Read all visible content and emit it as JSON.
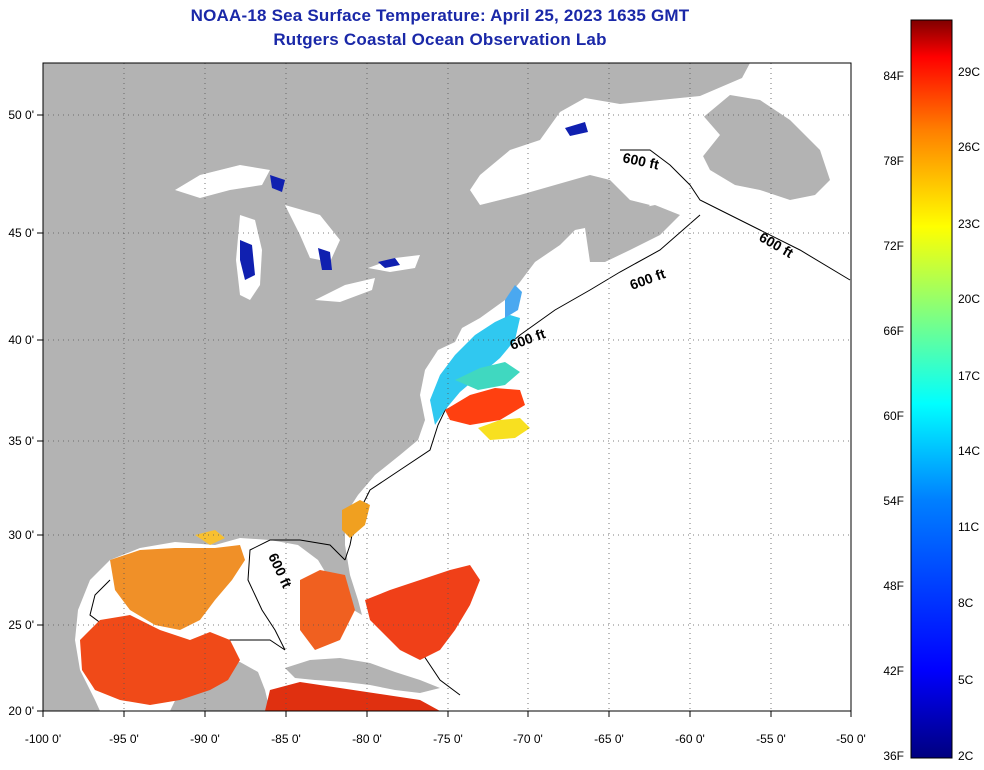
{
  "title_line1": "NOAA-18 Sea Surface Temperature:  April 25, 2023 1635 GMT",
  "title_line2": "Rutgers Coastal Ocean Observation Lab",
  "map": {
    "x_ticks": [
      "-100 0'",
      "-95 0'",
      "-90 0'",
      "-85 0'",
      "-80 0'",
      "-75 0'",
      "-70 0'",
      "-65 0'",
      "-60 0'",
      "-55 0'",
      "-50 0'"
    ],
    "y_ticks": [
      "50 0'",
      "45 0'",
      "40 0'",
      "35 0'",
      "30 0'",
      "25 0'",
      "20 0'"
    ],
    "lon_range": [
      -100,
      -50
    ],
    "lat_range": [
      20,
      52.5
    ],
    "contour_label": "600 ft",
    "land_color": "#b3b3b3",
    "ocean_nodata_color": "#ffffff"
  },
  "colorbar": {
    "fahrenheit_labels": [
      "84F",
      "78F",
      "72F",
      "66F",
      "60F",
      "54F",
      "48F",
      "42F",
      "36F"
    ],
    "celsius_labels": [
      "29C",
      "26C",
      "23C",
      "20C",
      "17C",
      "14C",
      "11C",
      "8C",
      "5C",
      "2C"
    ],
    "colors": [
      "#00007f",
      "#0000ff",
      "#0080ff",
      "#00ffff",
      "#80ff80",
      "#ffff00",
      "#ff8000",
      "#ff0000",
      "#7f0000"
    ]
  }
}
